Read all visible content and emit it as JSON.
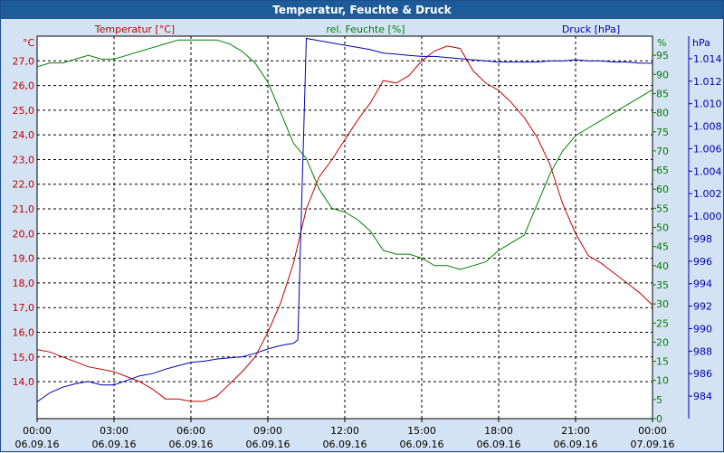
{
  "window": {
    "title": "Temperatur, Feuchte & Druck"
  },
  "colors": {
    "temperature": "#c00000",
    "humidity": "#008000",
    "pressure": "#0000b0",
    "grid": "#000000",
    "plot_bg": "#ffffff"
  },
  "chart_data": {
    "type": "line",
    "title": "Temperatur, Feuchte & Druck",
    "grid": true,
    "x_axis": {
      "range": [
        "06.09.16 00:00",
        "07.09.16 00:00"
      ],
      "ticks": [
        {
          "time": "00:00",
          "date": "06.09.16"
        },
        {
          "time": "03:00",
          "date": "06.09.16"
        },
        {
          "time": "06:00",
          "date": "06.09.16"
        },
        {
          "time": "09:00",
          "date": "06.09.16"
        },
        {
          "time": "12:00",
          "date": "06.09.16"
        },
        {
          "time": "15:00",
          "date": "06.09.16"
        },
        {
          "time": "18:00",
          "date": "06.09.16"
        },
        {
          "time": "21:00",
          "date": "06.09.16"
        },
        {
          "time": "00:00",
          "date": "07.09.16"
        }
      ]
    },
    "axes": {
      "temperature": {
        "label": "Temperatur [°C]",
        "unit": "°C",
        "range": [
          12.5,
          28.0
        ],
        "ticks": [
          "14,0",
          "15,0",
          "16,0",
          "17,0",
          "18,0",
          "19,0",
          "20,0",
          "21,0",
          "22,0",
          "23,0",
          "24,0",
          "25,0",
          "26,0",
          "27,0"
        ]
      },
      "humidity": {
        "label": "rel. Feuchte [%]",
        "unit": "%",
        "range": [
          0,
          100
        ],
        "ticks": [
          "0",
          "5",
          "10",
          "15",
          "20",
          "25",
          "30",
          "35",
          "40",
          "45",
          "50",
          "55",
          "60",
          "65",
          "70",
          "75",
          "80",
          "85",
          "90",
          "95"
        ]
      },
      "pressure": {
        "label": "Druck [hPa]",
        "unit": "hPa",
        "range": [
          982,
          1016
        ],
        "ticks": [
          "984",
          "986",
          "988",
          "990",
          "992",
          "994",
          "996",
          "998",
          "1.000",
          "1.002",
          "1.004",
          "1.006",
          "1.008",
          "1.010",
          "1.012",
          "1.014"
        ]
      }
    },
    "series": [
      {
        "name": "Temperatur [°C]",
        "axis": "temperature",
        "color": "#c00000",
        "x": [
          "06.09.16 00:00",
          "06.09.16 00:30",
          "06.09.16 01:00",
          "06.09.16 01:30",
          "06.09.16 02:00",
          "06.09.16 02:30",
          "06.09.16 03:00",
          "06.09.16 03:30",
          "06.09.16 04:00",
          "06.09.16 04:30",
          "06.09.16 05:00",
          "06.09.16 05:30",
          "06.09.16 06:00",
          "06.09.16 06:30",
          "06.09.16 07:00",
          "06.09.16 07:30",
          "06.09.16 08:00",
          "06.09.16 08:30",
          "06.09.16 09:00",
          "06.09.16 09:30",
          "06.09.16 10:00",
          "06.09.16 10:30",
          "06.09.16 11:00",
          "06.09.16 11:30",
          "06.09.16 12:00",
          "06.09.16 12:30",
          "06.09.16 13:00",
          "06.09.16 13:30",
          "06.09.16 14:00",
          "06.09.16 14:30",
          "06.09.16 15:00",
          "06.09.16 15:30",
          "06.09.16 16:00",
          "06.09.16 16:30",
          "06.09.16 17:00",
          "06.09.16 17:30",
          "06.09.16 18:00",
          "06.09.16 18:30",
          "06.09.16 19:00",
          "06.09.16 19:30",
          "06.09.16 20:00",
          "06.09.16 20:30",
          "06.09.16 21:00",
          "06.09.16 21:30",
          "06.09.16 22:00",
          "06.09.16 22:30",
          "06.09.16 23:00",
          "06.09.16 23:30",
          "07.09.16 00:00"
        ],
        "values": [
          15.3,
          15.2,
          15.0,
          14.8,
          14.6,
          14.5,
          14.4,
          14.2,
          14.0,
          13.7,
          13.3,
          13.3,
          13.2,
          13.2,
          13.4,
          13.9,
          14.4,
          15.0,
          16.0,
          17.2,
          18.8,
          21.0,
          22.3,
          23.0,
          23.8,
          24.6,
          25.3,
          26.2,
          26.1,
          26.4,
          27.0,
          27.4,
          27.6,
          27.5,
          26.6,
          26.1,
          25.8,
          25.3,
          24.7,
          23.9,
          22.8,
          21.2,
          20.0,
          19.1,
          18.8,
          18.4,
          18.0,
          17.6,
          17.1
        ]
      },
      {
        "name": "rel. Feuchte [%]",
        "axis": "humidity",
        "color": "#008000",
        "x": [
          "06.09.16 00:00",
          "06.09.16 00:30",
          "06.09.16 01:00",
          "06.09.16 01:30",
          "06.09.16 02:00",
          "06.09.16 02:30",
          "06.09.16 03:00",
          "06.09.16 03:30",
          "06.09.16 04:00",
          "06.09.16 04:30",
          "06.09.16 05:00",
          "06.09.16 05:30",
          "06.09.16 06:00",
          "06.09.16 06:30",
          "06.09.16 07:00",
          "06.09.16 07:30",
          "06.09.16 08:00",
          "06.09.16 08:30",
          "06.09.16 09:00",
          "06.09.16 09:30",
          "06.09.16 10:00",
          "06.09.16 10:30",
          "06.09.16 11:00",
          "06.09.16 11:30",
          "06.09.16 12:00",
          "06.09.16 12:30",
          "06.09.16 13:00",
          "06.09.16 13:30",
          "06.09.16 14:00",
          "06.09.16 14:30",
          "06.09.16 15:00",
          "06.09.16 15:30",
          "06.09.16 16:00",
          "06.09.16 16:30",
          "06.09.16 17:00",
          "06.09.16 17:30",
          "06.09.16 18:00",
          "06.09.16 18:30",
          "06.09.16 19:00",
          "06.09.16 19:30",
          "06.09.16 20:00",
          "06.09.16 20:30",
          "06.09.16 21:00",
          "06.09.16 21:30",
          "06.09.16 22:00",
          "06.09.16 22:30",
          "06.09.16 23:00",
          "06.09.16 23:30",
          "07.09.16 00:00"
        ],
        "values": [
          92,
          93,
          93,
          94,
          95,
          94,
          94,
          95,
          96,
          97,
          98,
          99,
          99,
          99,
          99,
          98,
          96,
          93,
          88,
          80,
          72,
          68,
          60,
          55,
          54,
          52,
          49,
          44,
          43,
          43,
          42,
          40,
          40,
          39,
          40,
          41,
          44,
          46,
          48,
          56,
          64,
          70,
          74,
          76,
          78,
          80,
          82,
          84,
          86
        ]
      },
      {
        "name": "Druck [hPa]",
        "axis": "pressure",
        "color": "#0000b0",
        "x": [
          "06.09.16 00:00",
          "06.09.16 00:30",
          "06.09.16 01:00",
          "06.09.16 01:30",
          "06.09.16 02:00",
          "06.09.16 02:30",
          "06.09.16 03:00",
          "06.09.16 03:30",
          "06.09.16 04:00",
          "06.09.16 04:30",
          "06.09.16 05:00",
          "06.09.16 05:30",
          "06.09.16 06:00",
          "06.09.16 06:30",
          "06.09.16 07:00",
          "06.09.16 07:30",
          "06.09.16 08:00",
          "06.09.16 08:30",
          "06.09.16 09:00",
          "06.09.16 09:30",
          "06.09.16 10:00",
          "06.09.16 10:10",
          "06.09.16 10:30",
          "06.09.16 11:00",
          "06.09.16 11:30",
          "06.09.16 12:00",
          "06.09.16 12:30",
          "06.09.16 13:00",
          "06.09.16 13:30",
          "06.09.16 14:00",
          "06.09.16 14:30",
          "06.09.16 15:00",
          "06.09.16 15:30",
          "06.09.16 16:00",
          "06.09.16 16:30",
          "06.09.16 17:00",
          "06.09.16 17:30",
          "06.09.16 18:00",
          "06.09.16 18:30",
          "06.09.16 19:00",
          "06.09.16 19:30",
          "06.09.16 20:00",
          "06.09.16 20:30",
          "06.09.16 21:00",
          "06.09.16 21:30",
          "06.09.16 22:00",
          "06.09.16 22:30",
          "06.09.16 23:00",
          "06.09.16 23:30",
          "07.09.16 00:00"
        ],
        "values": [
          983.5,
          984.3,
          984.8,
          985.1,
          985.3,
          985.0,
          985.0,
          985.4,
          985.8,
          986.0,
          986.4,
          986.7,
          987.0,
          987.1,
          987.3,
          987.4,
          987.5,
          987.8,
          988.2,
          988.5,
          988.7,
          989.0,
          1015.8,
          1015.6,
          1015.4,
          1015.2,
          1015.0,
          1014.8,
          1014.5,
          1014.4,
          1014.3,
          1014.2,
          1014.2,
          1014.1,
          1014.0,
          1013.9,
          1013.8,
          1013.7,
          1013.7,
          1013.7,
          1013.7,
          1013.8,
          1013.8,
          1013.9,
          1013.8,
          1013.8,
          1013.7,
          1013.7,
          1013.6,
          1013.6
        ]
      }
    ]
  }
}
